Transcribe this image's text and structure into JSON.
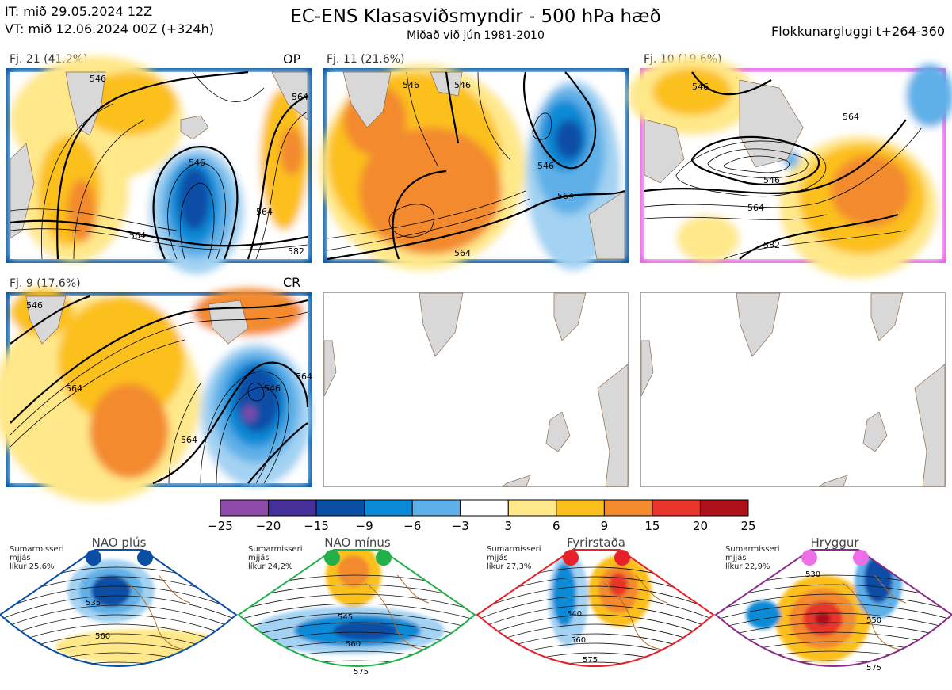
{
  "header": {
    "it_line": "IT: mið 29.05.2024 12Z",
    "vt_line": "VT: mið 12.06.2024 00Z  (+324h)",
    "title": "EC-ENS Klasasviðsmyndir - 500 hPa hæð",
    "subtitle": "Miðað við jún 1981-2010",
    "window": "Flokkunargluggi t+264-360"
  },
  "clusters": [
    {
      "label": "Fj. 21 (41.2%)",
      "tag": "OP"
    },
    {
      "label": "Fj. 11 (21.6%)",
      "tag": ""
    },
    {
      "label": "Fj. 10 (19.6%)",
      "tag": ""
    },
    {
      "label": "Fj. 9 (17.6%)",
      "tag": "CR"
    }
  ],
  "contour_labels": {
    "c21": [
      "546",
      "564",
      "546",
      "564",
      "564",
      "582"
    ],
    "c11": [
      "546",
      "546",
      "546",
      "564",
      "564"
    ],
    "c10": [
      "546",
      "564",
      "546",
      "564",
      "582"
    ],
    "c9": [
      "546",
      "564",
      "546",
      "564",
      "564"
    ]
  },
  "colors": {
    "frame_blue": "#0055a4",
    "frame_pink": "#e35fe3",
    "land": "#d8d8d8",
    "coast": "#8a6a4a"
  },
  "chart_data": {
    "type": "heatmap",
    "title": "EC-ENS Klasasviðsmyndir - 500 hPa hæð",
    "colorbar": {
      "ticks": [
        "−25",
        "−20",
        "−15",
        "−9",
        "−6",
        "−3",
        "3",
        "6",
        "9",
        "15",
        "20",
        "25"
      ],
      "colors": [
        "#8e4aa8",
        "#45309a",
        "#0a4ea6",
        "#0a8ad6",
        "#5fb0e8",
        "#a3d2f2",
        "#ffffff",
        "#ffe88a",
        "#fcc01c",
        "#f38a2e",
        "#e8342a",
        "#b0101a"
      ]
    },
    "clusters": [
      {
        "name": "Fj. 21",
        "probability_pct": 41.2,
        "tag": "OP"
      },
      {
        "name": "Fj. 11",
        "probability_pct": 21.6,
        "tag": ""
      },
      {
        "name": "Fj. 10",
        "probability_pct": 19.6,
        "tag": ""
      },
      {
        "name": "Fj. 9",
        "probability_pct": 17.6,
        "tag": "CR"
      }
    ]
  },
  "regimes": [
    {
      "name": "NAO plús",
      "season": "Sumarmisseri",
      "mean": "mjjás",
      "prob": "líkur 25,6%",
      "color": "#0a4ea6",
      "frame": "#0a4ea6",
      "contours": [
        "535",
        "560"
      ]
    },
    {
      "name": "NAO mínus",
      "season": "Sumarmisseri",
      "mean": "mjjás",
      "prob": "líkur 24,2%",
      "color": "#22b04a",
      "frame": "#22b04a",
      "contours": [
        "545",
        "560",
        "575"
      ]
    },
    {
      "name": "Fyrirstaða",
      "season": "Sumarmisseri",
      "mean": "mjjás",
      "prob": "líkur 27,3%",
      "color": "#e8202a",
      "frame": "#e8202a",
      "contours": [
        "540",
        "560",
        "575"
      ]
    },
    {
      "name": "Hryggur",
      "season": "Sumarmisseri",
      "mean": "mjjás",
      "prob": "líkur 22,9%",
      "color": "#ee6ee8",
      "frame": "#8a2a8a",
      "contours": [
        "530",
        "550",
        "575"
      ]
    }
  ]
}
